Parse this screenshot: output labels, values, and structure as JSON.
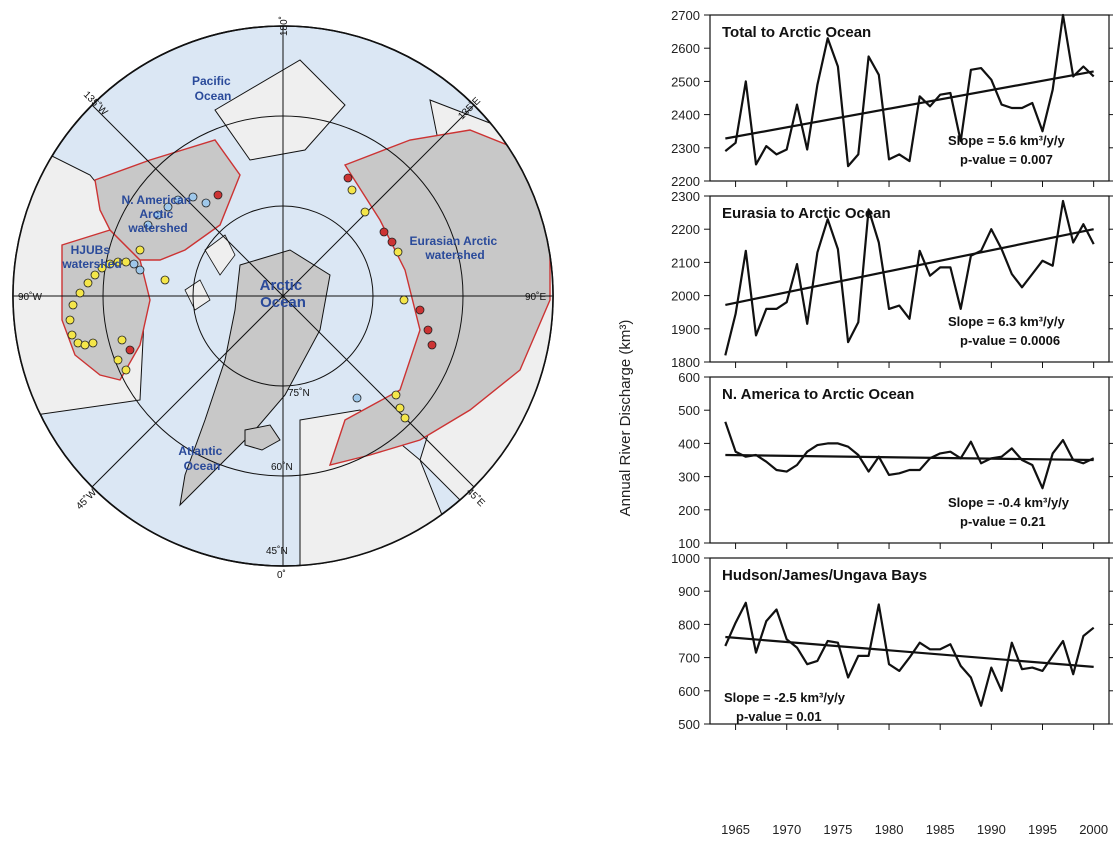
{
  "map": {
    "labels": {
      "pacific": [
        "Pacific",
        "Ocean"
      ],
      "atlantic": [
        "Atlantic",
        "Ocean"
      ],
      "arctic": [
        "Arctic",
        "Ocean"
      ],
      "na_watershed": [
        "N. American",
        "Arctic",
        "watershed"
      ],
      "hjubs": [
        "HJUBs",
        "watershed"
      ],
      "eurasian": [
        "Eurasian Arctic",
        "watershed"
      ]
    },
    "grid": {
      "top": "180˚",
      "bottom": "0˚",
      "left": "90˚W",
      "right": "90˚E",
      "nw": "135˚W",
      "ne": "135˚E",
      "sw": "45˚W",
      "se": "45˚E",
      "lat75": "75˚N",
      "lat60": "60˚N",
      "lat45": "45˚N"
    },
    "colors": {
      "ocean": "#dbe7f4",
      "land": "#efefef",
      "watershed": "#c8c8c8",
      "boundary": "#cc3333"
    }
  },
  "chart_data": [
    {
      "type": "line",
      "title": "Total to Arctic Ocean",
      "x": [
        1964,
        1965,
        1966,
        1967,
        1968,
        1969,
        1970,
        1971,
        1972,
        1973,
        1974,
        1975,
        1976,
        1977,
        1978,
        1979,
        1980,
        1981,
        1982,
        1983,
        1984,
        1985,
        1986,
        1987,
        1988,
        1989,
        1990,
        1991,
        1992,
        1993,
        1994,
        1995,
        1996,
        1997,
        1998,
        1999,
        2000
      ],
      "values": [
        2290,
        2315,
        2500,
        2250,
        2305,
        2280,
        2295,
        2430,
        2295,
        2490,
        2630,
        2545,
        2245,
        2280,
        2575,
        2520,
        2265,
        2280,
        2260,
        2455,
        2425,
        2460,
        2465,
        2320,
        2535,
        2540,
        2505,
        2430,
        2420,
        2420,
        2435,
        2350,
        2475,
        2700,
        2515,
        2545,
        2515
      ],
      "trend": [
        [
          1964,
          2328
        ],
        [
          2000,
          2530
        ]
      ],
      "slope_label": "Slope = 5.6 km³/y/y",
      "pvalue_label": "p-value = 0.007",
      "ylim": [
        2200,
        2700
      ],
      "yticks": [
        2200,
        2300,
        2400,
        2500,
        2600,
        2700
      ]
    },
    {
      "type": "line",
      "title": "Eurasia to Arctic Ocean",
      "x": [
        1964,
        1965,
        1966,
        1967,
        1968,
        1969,
        1970,
        1971,
        1972,
        1973,
        1974,
        1975,
        1976,
        1977,
        1978,
        1979,
        1980,
        1981,
        1982,
        1983,
        1984,
        1985,
        1986,
        1987,
        1988,
        1989,
        1990,
        1991,
        1992,
        1993,
        1994,
        1995,
        1996,
        1997,
        1998,
        1999,
        2000
      ],
      "values": [
        1820,
        1945,
        2135,
        1880,
        1960,
        1960,
        1980,
        2095,
        1915,
        2130,
        2230,
        2140,
        1860,
        1920,
        2260,
        2160,
        1960,
        1970,
        1930,
        2135,
        2060,
        2085,
        2085,
        1960,
        2120,
        2135,
        2200,
        2140,
        2065,
        2025,
        2065,
        2105,
        2090,
        2285,
        2160,
        2215,
        2155
      ],
      "trend": [
        [
          1964,
          1972
        ],
        [
          2000,
          2200
        ]
      ],
      "slope_label": "Slope = 6.3 km³/y/y",
      "pvalue_label": "p-value = 0.0006",
      "ylim": [
        1800,
        2300
      ],
      "yticks": [
        1800,
        1900,
        2000,
        2100,
        2200,
        2300
      ]
    },
    {
      "type": "line",
      "title": "N. America to Arctic Ocean",
      "x": [
        1964,
        1965,
        1966,
        1967,
        1968,
        1969,
        1970,
        1971,
        1972,
        1973,
        1974,
        1975,
        1976,
        1977,
        1978,
        1979,
        1980,
        1981,
        1982,
        1983,
        1984,
        1985,
        1986,
        1987,
        1988,
        1989,
        1990,
        1991,
        1992,
        1993,
        1994,
        1995,
        1996,
        1997,
        1998,
        1999,
        2000
      ],
      "values": [
        465,
        375,
        360,
        365,
        345,
        320,
        315,
        335,
        375,
        395,
        400,
        400,
        390,
        365,
        315,
        360,
        305,
        310,
        320,
        320,
        355,
        370,
        375,
        355,
        405,
        340,
        355,
        360,
        385,
        350,
        335,
        265,
        370,
        410,
        350,
        340,
        355
      ],
      "trend": [
        [
          1964,
          365
        ],
        [
          2000,
          350
        ]
      ],
      "slope_label": "Slope = -0.4 km³/y/y",
      "pvalue_label": "p-value = 0.21",
      "ylim": [
        100,
        600
      ],
      "yticks": [
        100,
        200,
        300,
        400,
        500,
        600
      ]
    },
    {
      "type": "line",
      "title": "Hudson/James/Ungava Bays",
      "x": [
        1964,
        1965,
        1966,
        1967,
        1968,
        1969,
        1970,
        1971,
        1972,
        1973,
        1974,
        1975,
        1976,
        1977,
        1978,
        1979,
        1980,
        1981,
        1982,
        1983,
        1984,
        1985,
        1986,
        1987,
        1988,
        1989,
        1990,
        1991,
        1992,
        1993,
        1994,
        1995,
        1996,
        1997,
        1998,
        1999,
        2000
      ],
      "values": [
        735,
        805,
        865,
        715,
        810,
        845,
        755,
        730,
        680,
        690,
        750,
        745,
        640,
        705,
        705,
        860,
        680,
        660,
        700,
        745,
        725,
        725,
        740,
        675,
        640,
        555,
        670,
        600,
        745,
        665,
        670,
        660,
        705,
        750,
        650,
        765,
        790
      ],
      "trend": [
        [
          1964,
          762
        ],
        [
          2000,
          672
        ]
      ],
      "slope_label": "Slope = -2.5 km³/y/y",
      "pvalue_label": "p-value = 0.01",
      "ylim": [
        500,
        1000
      ],
      "yticks": [
        500,
        600,
        700,
        800,
        900,
        1000
      ]
    }
  ],
  "shared": {
    "ylabel": "Annual River Discharge (km³)",
    "xticks": [
      1965,
      1970,
      1975,
      1980,
      1985,
      1990,
      1995,
      2000
    ]
  }
}
